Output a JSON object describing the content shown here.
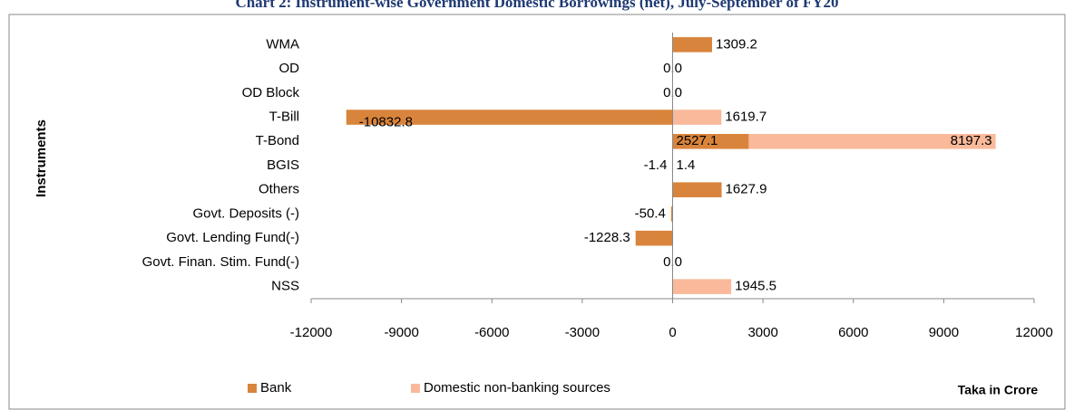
{
  "chart_data": {
    "type": "hbar_stacked",
    "title": "Chart 2: Instrument-wise Government Domestic Borrowings (net), July-September of FY20",
    "y_label": "Instruments",
    "x_label": "Taka in Crore",
    "categories": [
      "WMA",
      "OD",
      "OD Block",
      "T-Bill",
      "T-Bond",
      "BGIS",
      "Others",
      "Govt. Deposits (-)",
      "Govt. Lending Fund(-)",
      "Govt. Finan. Stim. Fund(-)",
      "NSS"
    ],
    "series": [
      {
        "name": "Bank",
        "color": "#d9843c",
        "values": [
          1309.2,
          0,
          0,
          -10832.8,
          2527.1,
          -1.4,
          1627.9,
          -50.4,
          -1228.3,
          0,
          null
        ],
        "value_labels": [
          null,
          "0.0",
          "0.0",
          null,
          null,
          null,
          null,
          null,
          null,
          "0.0",
          null
        ]
      },
      {
        "name": "Domestic non-banking sources",
        "color": "#f9b99a",
        "values": [
          null,
          null,
          null,
          1619.7,
          8197.3,
          1.4,
          null,
          null,
          null,
          null,
          1945.5
        ]
      }
    ],
    "xlim": [
      -12000,
      12000
    ],
    "xticks": [
      -12000,
      -9000,
      -6000,
      -3000,
      0,
      3000,
      6000,
      9000,
      12000
    ],
    "legend": "bottom"
  }
}
